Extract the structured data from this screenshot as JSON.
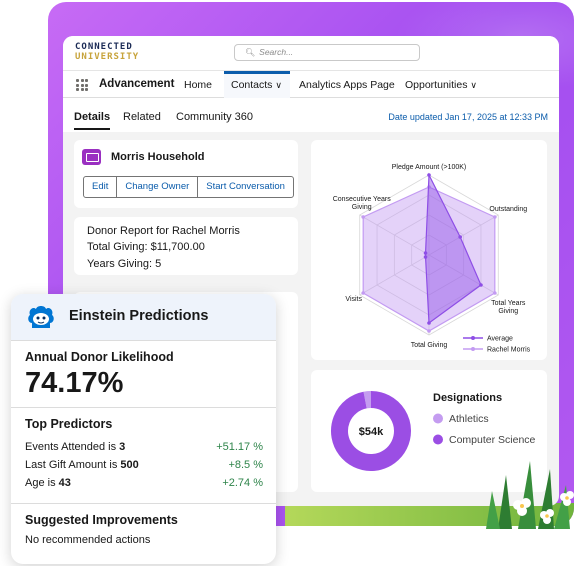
{
  "brand": {
    "line1": "CONNECTED",
    "line2": "UNIVERSITY"
  },
  "search": {
    "placeholder": "Search..."
  },
  "nav": {
    "app_name": "Advancement",
    "items": [
      "Home",
      "Contacts",
      "Analytics Apps Page",
      "Opportunities"
    ],
    "active": "Contacts"
  },
  "tabs": {
    "items": [
      "Details",
      "Related",
      "Community 360"
    ],
    "active": "Details"
  },
  "date_updated": "Date updated Jan 17, 2025 at 12:33 PM",
  "household": {
    "title": "Morris Household",
    "buttons": [
      "Edit",
      "Change Owner",
      "Start Conversation"
    ]
  },
  "donor_report": {
    "title": "Donor Report for Rachel Morris",
    "total_giving": "Total Giving: $11,700.00",
    "years_giving": "Years Giving: 5"
  },
  "radar": {
    "axes": [
      "Pledge Amount (>100K)",
      "Outstanding",
      "Total Years Giving",
      "Total Giving",
      "Visits",
      "Consecutive Years Giving"
    ],
    "series": [
      {
        "name": "Average",
        "values": [
          1.0,
          0.45,
          0.75,
          0.85,
          0.05,
          0.05
        ],
        "color": "#8e4ee6"
      },
      {
        "name": "Rachel Morris",
        "values": [
          0.85,
          0.95,
          0.95,
          0.95,
          0.95,
          0.95
        ],
        "color": "#c39bf2"
      }
    ]
  },
  "designations": {
    "title": "Designations",
    "center_label": "$54k",
    "items": [
      {
        "label": "Athletics",
        "share": 0.03,
        "color": "#c49cf0"
      },
      {
        "label": "Computer Science",
        "share": 0.97,
        "color": "#9b4ee4"
      }
    ]
  },
  "einstein": {
    "title": "Einstein Predictions",
    "metric_label": "Annual Donor Likelihood",
    "metric_value": "74.17%",
    "predictors_title": "Top Predictors",
    "predictors": [
      {
        "label": "Events Attended is ",
        "value": "3",
        "change": "+51.17 %"
      },
      {
        "label": "Last Gift Amount is ",
        "value": "500",
        "change": "+8.5 %"
      },
      {
        "label": "Age is ",
        "value": "43",
        "change": "+2.74 %"
      }
    ],
    "improvements_title": "Suggested Improvements",
    "improvements_text": "No recommended actions"
  }
}
